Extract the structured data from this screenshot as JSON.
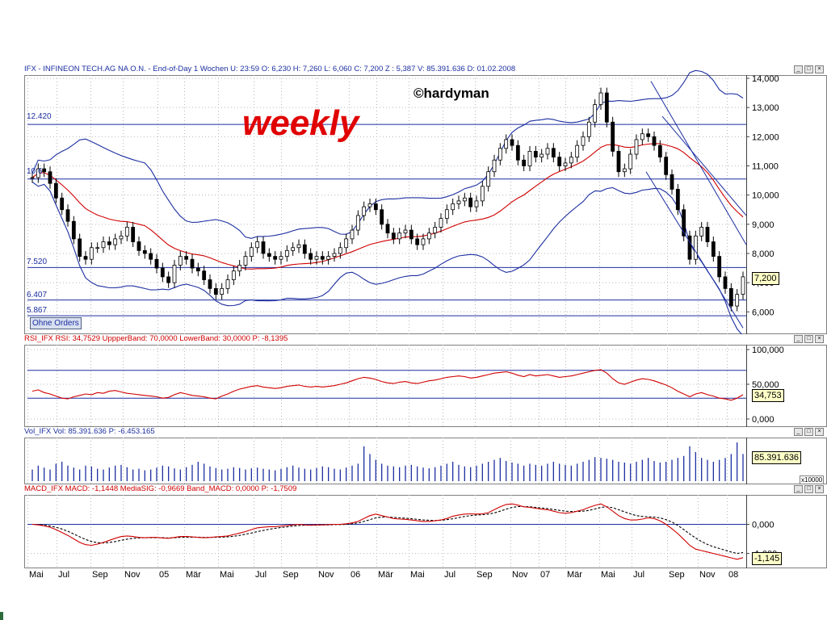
{
  "price_panel": {
    "header": "IFX - INFINEON TECH.AG NA O.N. - End-of-Day 1 Wochen  U: 23:59  O: 6,230  H: 7,260  L: 6,060  C: 7,200  Z : 5,387  V: 85.391.636  D: 01.02.2008",
    "title": "weekly",
    "copyright": "©hardyman",
    "button": "Ohne Orders",
    "levels": [
      "12.420",
      "10.6",
      "7.520",
      "6.407",
      "5.867"
    ],
    "y_ticks": [
      "14,000",
      "13,000",
      "12,000",
      "11,000",
      "10,000",
      "9,000",
      "8,000",
      "7,000",
      "6,000"
    ],
    "current": "7,200"
  },
  "rsi_panel": {
    "header": "RSI_IFX  RSI: 34,7529  UppperBand: 70,0000  LowerBand: 30,0000  P: -8,1395",
    "y_ticks": [
      "100,000",
      "50,000",
      "0,000"
    ],
    "current": "34,753"
  },
  "vol_panel": {
    "header": "Vol_IFX  Vol: 85.391.636  P: -6.453.165",
    "current": "85.391.636",
    "scale": "x10000"
  },
  "macd_panel": {
    "header": "MACD_IFX  MACD: -1,1448  MediaSIG: -0,9669  Band_MACD: 0,0000  P: -1,7509",
    "y_ticks": [
      "0,000",
      "-1,000"
    ],
    "current": "-1,145"
  },
  "x_labels": [
    "Mai",
    "Jul",
    "Sep",
    "Nov",
    "05",
    "Mär",
    "Mai",
    "Jul",
    "Sep",
    "Nov",
    "06",
    "Mär",
    "Mai",
    "Jul",
    "Sep",
    "Nov",
    "07",
    "Mär",
    "Mai",
    "Jul",
    "Sep",
    "Nov",
    "08"
  ],
  "chart_data": [
    {
      "type": "line",
      "title": "IFX - INFINEON TECH.AG NA O.N. - End-of-Day 1 Wochen",
      "ylim": [
        5.4,
        14.0
      ],
      "horizontal_levels": [
        12.42,
        10.55,
        7.52,
        6.407,
        5.867
      ],
      "series": [
        {
          "values": [
            10.6,
            10.9,
            10.8,
            10.4,
            9.9,
            9.5,
            9.1,
            8.5,
            7.9,
            7.8,
            8.2,
            8.2,
            8.4,
            8.3,
            8.5,
            8.6,
            8.9,
            8.4,
            8.1,
            8.0,
            7.8,
            7.5,
            7.2,
            7.0,
            7.6,
            7.9,
            7.8,
            7.5,
            7.4,
            7.1,
            6.8,
            6.6,
            6.8,
            7.1,
            7.4,
            7.6,
            7.9,
            8.2,
            8.4,
            8.0,
            7.9,
            7.8,
            7.9,
            8.1,
            8.2,
            8.3,
            8.0,
            7.8,
            7.9,
            7.8,
            7.9,
            8.0,
            8.2,
            8.5,
            8.8,
            9.3,
            9.6,
            9.7,
            9.5,
            9.0,
            8.7,
            8.5,
            8.7,
            8.8,
            8.5,
            8.3,
            8.5,
            8.7,
            8.9,
            9.2,
            9.5,
            9.7,
            9.8,
            9.9,
            9.6,
            9.8,
            10.3,
            10.8,
            11.2,
            11.6,
            11.9,
            11.7,
            11.2,
            11.0,
            11.5,
            11.3,
            11.4,
            11.6,
            11.3,
            11.0,
            11.1,
            11.3,
            11.7,
            12.0,
            12.5,
            13.1,
            13.5,
            12.5,
            11.5,
            10.8,
            10.9,
            11.4,
            11.9,
            12.1,
            12.0,
            11.7,
            11.3,
            10.7,
            10.2,
            9.5,
            8.6,
            7.8,
            8.6,
            8.9,
            8.4,
            7.9,
            7.2,
            6.8,
            6.2,
            6.6,
            7.2
          ]
        }
      ]
    },
    {
      "type": "line",
      "title": "RSI_IFX",
      "ylim": [
        0,
        100
      ],
      "horizontal_levels": [
        70,
        30
      ],
      "series": [
        {
          "values": [
            40,
            42,
            38,
            36,
            33,
            30,
            29,
            32,
            34,
            36,
            35,
            38,
            37,
            40,
            41,
            39,
            37,
            36,
            35,
            34,
            33,
            32,
            30,
            31,
            35,
            38,
            36,
            34,
            33,
            32,
            30,
            29,
            33,
            36,
            40,
            43,
            45,
            47,
            48,
            46,
            45,
            44,
            45,
            47,
            48,
            49,
            47,
            46,
            47,
            46,
            47,
            48,
            50,
            52,
            55,
            58,
            60,
            59,
            57,
            54,
            52,
            51,
            53,
            54,
            52,
            51,
            53,
            55,
            56,
            58,
            60,
            61,
            62,
            61,
            59,
            60,
            62,
            64,
            66,
            67,
            68,
            66,
            63,
            61,
            64,
            62,
            63,
            64,
            62,
            60,
            61,
            62,
            64,
            66,
            68,
            70,
            71,
            66,
            58,
            52,
            50,
            53,
            56,
            58,
            57,
            55,
            52,
            49,
            45,
            40,
            36,
            32,
            36,
            38,
            35,
            33,
            30,
            29,
            27,
            30,
            35
          ]
        }
      ]
    },
    {
      "type": "bar",
      "title": "Vol_IFX",
      "series": [
        {
          "values": [
            0.3,
            0.4,
            0.35,
            0.3,
            0.45,
            0.5,
            0.4,
            0.35,
            0.3,
            0.4,
            0.38,
            0.32,
            0.3,
            0.35,
            0.4,
            0.42,
            0.36,
            0.3,
            0.32,
            0.28,
            0.3,
            0.35,
            0.4,
            0.38,
            0.33,
            0.3,
            0.36,
            0.42,
            0.5,
            0.45,
            0.38,
            0.34,
            0.3,
            0.32,
            0.36,
            0.34,
            0.3,
            0.33,
            0.35,
            0.32,
            0.3,
            0.28,
            0.32,
            0.36,
            0.4,
            0.35,
            0.32,
            0.3,
            0.34,
            0.38,
            0.36,
            0.32,
            0.3,
            0.35,
            0.4,
            0.45,
            0.9,
            0.7,
            0.55,
            0.45,
            0.4,
            0.38,
            0.36,
            0.4,
            0.42,
            0.38,
            0.35,
            0.33,
            0.36,
            0.4,
            0.45,
            0.5,
            0.42,
            0.38,
            0.36,
            0.4,
            0.45,
            0.5,
            0.55,
            0.6,
            0.52,
            0.48,
            0.45,
            0.4,
            0.45,
            0.42,
            0.4,
            0.45,
            0.5,
            0.45,
            0.42,
            0.4,
            0.45,
            0.5,
            0.55,
            0.62,
            0.6,
            0.58,
            0.55,
            0.5,
            0.48,
            0.45,
            0.5,
            0.55,
            0.6,
            0.52,
            0.48,
            0.5,
            0.55,
            0.6,
            0.65,
            0.9,
            0.75,
            0.6,
            0.55,
            0.5,
            0.55,
            0.6,
            0.7,
            1.0,
            0.7
          ]
        }
      ]
    },
    {
      "type": "line",
      "title": "MACD_IFX",
      "ylim": [
        -1.4,
        0.9
      ],
      "series": [
        {
          "values": [
            0.0,
            -0.02,
            -0.05,
            -0.1,
            -0.18,
            -0.28,
            -0.38,
            -0.5,
            -0.62,
            -0.7,
            -0.72,
            -0.68,
            -0.62,
            -0.55,
            -0.48,
            -0.42,
            -0.4,
            -0.42,
            -0.45,
            -0.46,
            -0.45,
            -0.45,
            -0.47,
            -0.48,
            -0.45,
            -0.42,
            -0.42,
            -0.43,
            -0.45,
            -0.46,
            -0.45,
            -0.43,
            -0.42,
            -0.4,
            -0.35,
            -0.3,
            -0.25,
            -0.18,
            -0.12,
            -0.1,
            -0.08,
            -0.08,
            -0.06,
            -0.04,
            -0.02,
            0.0,
            -0.02,
            -0.03,
            -0.02,
            -0.02,
            -0.01,
            0.0,
            0.0,
            0.02,
            0.05,
            0.1,
            0.2,
            0.3,
            0.35,
            0.3,
            0.25,
            0.2,
            0.18,
            0.17,
            0.15,
            0.12,
            0.1,
            0.1,
            0.12,
            0.15,
            0.2,
            0.28,
            0.32,
            0.35,
            0.36,
            0.35,
            0.36,
            0.4,
            0.5,
            0.6,
            0.68,
            0.7,
            0.66,
            0.6,
            0.58,
            0.55,
            0.52,
            0.5,
            0.45,
            0.4,
            0.38,
            0.4,
            0.45,
            0.5,
            0.58,
            0.65,
            0.7,
            0.6,
            0.45,
            0.3,
            0.2,
            0.15,
            0.15,
            0.18,
            0.22,
            0.2,
            0.12,
            0.0,
            -0.15,
            -0.32,
            -0.52,
            -0.72,
            -0.85,
            -0.9,
            -0.95,
            -1.0,
            -1.05,
            -1.1,
            -1.15,
            -1.2,
            -1.145
          ]
        },
        {
          "values": [
            0.0,
            -0.01,
            -0.03,
            -0.06,
            -0.1,
            -0.16,
            -0.24,
            -0.33,
            -0.43,
            -0.52,
            -0.59,
            -0.63,
            -0.64,
            -0.62,
            -0.59,
            -0.55,
            -0.51,
            -0.48,
            -0.47,
            -0.46,
            -0.46,
            -0.46,
            -0.46,
            -0.47,
            -0.46,
            -0.45,
            -0.44,
            -0.44,
            -0.44,
            -0.45,
            -0.45,
            -0.44,
            -0.44,
            -0.43,
            -0.41,
            -0.38,
            -0.34,
            -0.3,
            -0.25,
            -0.21,
            -0.17,
            -0.14,
            -0.11,
            -0.09,
            -0.06,
            -0.04,
            -0.03,
            -0.03,
            -0.03,
            -0.02,
            -0.02,
            -0.01,
            -0.01,
            0.0,
            0.02,
            0.05,
            0.1,
            0.16,
            0.22,
            0.25,
            0.25,
            0.24,
            0.22,
            0.21,
            0.19,
            0.17,
            0.15,
            0.14,
            0.13,
            0.14,
            0.16,
            0.19,
            0.23,
            0.27,
            0.3,
            0.32,
            0.33,
            0.35,
            0.39,
            0.45,
            0.52,
            0.58,
            0.61,
            0.61,
            0.6,
            0.58,
            0.56,
            0.54,
            0.51,
            0.48,
            0.45,
            0.44,
            0.44,
            0.45,
            0.48,
            0.53,
            0.58,
            0.6,
            0.57,
            0.5,
            0.43,
            0.36,
            0.3,
            0.27,
            0.26,
            0.25,
            0.22,
            0.16,
            0.08,
            -0.04,
            -0.18,
            -0.33,
            -0.47,
            -0.59,
            -0.69,
            -0.77,
            -0.83,
            -0.89,
            -0.95,
            -1.0,
            -0.967
          ]
        }
      ]
    }
  ]
}
